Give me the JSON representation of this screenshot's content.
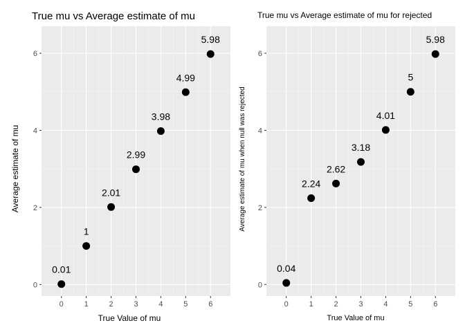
{
  "chart_data": [
    {
      "type": "scatter",
      "title": "True mu vs Average estimate of mu",
      "xlabel": "True Value of mu",
      "ylabel": "Average estimate of mu",
      "x": [
        0,
        1,
        2,
        3,
        4,
        5,
        6
      ],
      "y": [
        0.01,
        1,
        2.01,
        2.99,
        3.98,
        4.99,
        5.98
      ],
      "labels": [
        "0.01",
        "1",
        "2.01",
        "2.99",
        "3.98",
        "4.99",
        "5.98"
      ],
      "xticks": [
        "0",
        "1",
        "2",
        "3",
        "4",
        "5",
        "6"
      ],
      "yticks": [
        "0",
        "2",
        "4",
        "6"
      ],
      "xlim": [
        -0.8,
        6.8
      ],
      "ylim": [
        -0.3,
        6.7
      ],
      "grid": true,
      "background": "#ebebeb",
      "point_color": "#000000"
    },
    {
      "type": "scatter",
      "title": "True mu vs Average estimate of mu for rejected",
      "xlabel": "True Value of mu",
      "ylabel": "Average estimate of mu when null was rejected",
      "x": [
        0,
        1,
        2,
        3,
        4,
        5,
        6
      ],
      "y": [
        0.04,
        2.24,
        2.62,
        3.18,
        4.01,
        5,
        5.98
      ],
      "labels": [
        "0.04",
        "2.24",
        "2.62",
        "3.18",
        "4.01",
        "5",
        "5.98"
      ],
      "xticks": [
        "0",
        "1",
        "2",
        "3",
        "4",
        "5",
        "6"
      ],
      "yticks": [
        "0",
        "2",
        "4",
        "6"
      ],
      "xlim": [
        -0.8,
        6.8
      ],
      "ylim": [
        -0.3,
        6.7
      ],
      "grid": true,
      "background": "#ebebeb",
      "point_color": "#000000"
    }
  ]
}
